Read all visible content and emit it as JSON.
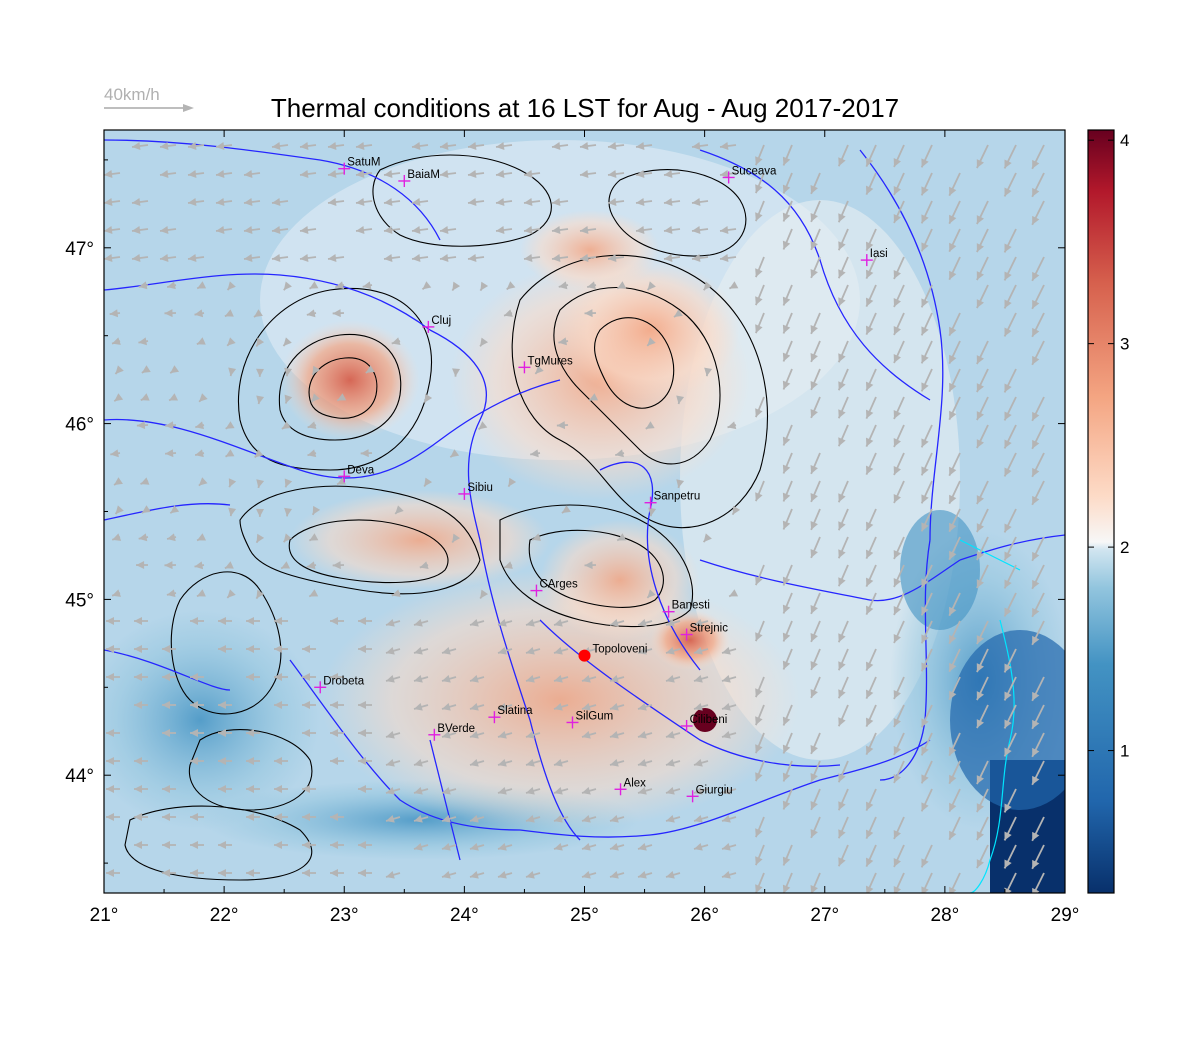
{
  "title": "Thermal conditions at 16 LST for Aug - Aug  2017-2017",
  "wind_legend": {
    "label": "40km/h"
  },
  "x_ticks": [
    "21°",
    "22°",
    "23°",
    "24°",
    "25°",
    "26°",
    "27°",
    "28°",
    "29°"
  ],
  "y_ticks": [
    "44°",
    "45°",
    "46°",
    "47°"
  ],
  "colorbar": {
    "ticks": [
      "1",
      "2",
      "3",
      "4"
    ],
    "range": [
      0.3,
      4.05
    ],
    "colors": [
      "#08306b",
      "#2166ac",
      "#4393c3",
      "#92c5de",
      "#d1e5f0",
      "#f7f7f7",
      "#fddbc7",
      "#f4a582",
      "#d6604d",
      "#b2182b",
      "#67001f"
    ]
  },
  "cities": [
    {
      "name": "SatuM",
      "lon": 23.0,
      "lat": 47.45
    },
    {
      "name": "BaiaM",
      "lon": 23.5,
      "lat": 47.38
    },
    {
      "name": "Suceava",
      "lon": 26.2,
      "lat": 47.4
    },
    {
      "name": "Iasi",
      "lon": 27.35,
      "lat": 46.93
    },
    {
      "name": "Cluj",
      "lon": 23.7,
      "lat": 46.55
    },
    {
      "name": "TgMures",
      "lon": 24.5,
      "lat": 46.32
    },
    {
      "name": "Deva",
      "lon": 23.0,
      "lat": 45.7
    },
    {
      "name": "Sibiu",
      "lon": 24.0,
      "lat": 45.6
    },
    {
      "name": "Sanpetru",
      "lon": 25.55,
      "lat": 45.55
    },
    {
      "name": "CArges",
      "lon": 24.6,
      "lat": 45.05
    },
    {
      "name": "Banesti",
      "lon": 25.7,
      "lat": 44.93
    },
    {
      "name": "Strejnic",
      "lon": 25.85,
      "lat": 44.8
    },
    {
      "name": "Drobeta",
      "lon": 22.8,
      "lat": 44.5
    },
    {
      "name": "Slatina",
      "lon": 24.25,
      "lat": 44.33
    },
    {
      "name": "BVerde",
      "lon": 23.75,
      "lat": 44.23
    },
    {
      "name": "SilGum",
      "lon": 24.9,
      "lat": 44.3
    },
    {
      "name": "Cilibeni",
      "lon": 25.85,
      "lat": 44.28
    },
    {
      "name": "Alex",
      "lon": 25.3,
      "lat": 43.92
    },
    {
      "name": "Giurgiu",
      "lon": 25.9,
      "lat": 43.88
    }
  ],
  "highlight_station": {
    "name": "Topoloveni",
    "lon": 25.0,
    "lat": 44.68,
    "color": "#ff0000"
  },
  "colors": {
    "city_marker": "#e020e0",
    "rivers": "#1f1fff",
    "contours": "#000000",
    "wind_arrows": "#b4b4b4",
    "coastline": "#00e5ff"
  }
}
